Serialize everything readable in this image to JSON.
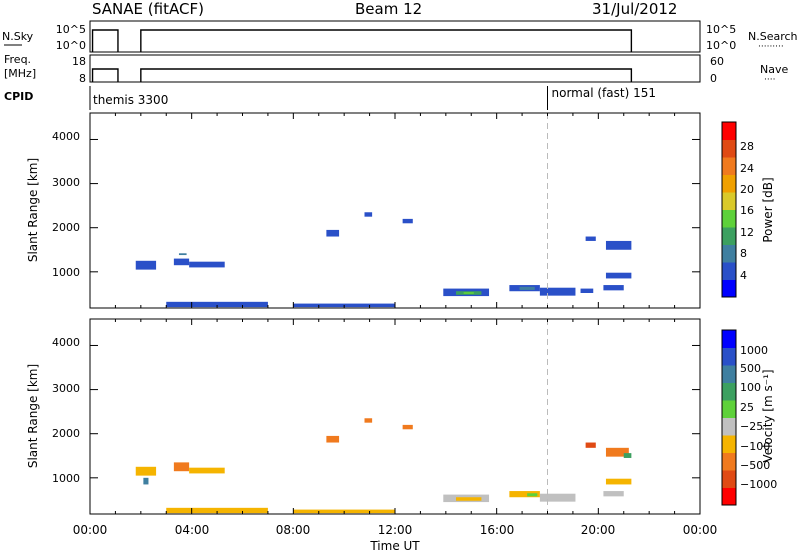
{
  "header": {
    "station": "SANAE (fitACF)",
    "beam": "Beam 12",
    "date": "31/Jul/2012"
  },
  "strip1": {
    "left_label": "N.Sky",
    "left_ticks": [
      "10^5",
      "10^0"
    ],
    "right_ticks": [
      "10^5",
      "10^0"
    ],
    "right_label": "N.Search",
    "right_key": "·········",
    "segments": [
      [
        0.1,
        1.1
      ],
      [
        2.0,
        21.3
      ]
    ]
  },
  "strip2": {
    "left_label_1": "Freq.",
    "left_label_2": "[MHz]",
    "left_ticks": [
      "18",
      "8"
    ],
    "right_ticks": [
      "60",
      "0"
    ],
    "right_label": "Nave",
    "right_key": "····",
    "segments": [
      [
        0.1,
        1.1
      ],
      [
        2.0,
        21.3
      ]
    ]
  },
  "cpid": {
    "label": "CPID",
    "programs": [
      {
        "start_hour": 0.0,
        "label": "themis 3300"
      },
      {
        "start_hour": 18.0,
        "label": "normal (fast) 151"
      }
    ]
  },
  "chart_data": [
    {
      "type": "heatmap",
      "ylabel": "Slant Range [km]",
      "y_ticks": [
        "4000",
        "3000",
        "2000",
        "1000"
      ],
      "y_range": [
        180,
        4600
      ],
      "x_range": [
        0,
        24
      ],
      "divider_hour": 18,
      "colorbar": {
        "label": "Power [dB]",
        "labels": [
          "28",
          "24",
          "20",
          "16",
          "12",
          "8",
          "4"
        ],
        "colors": [
          "#0000ff",
          "#2a50c8",
          "#3f7fa0",
          "#3ca060",
          "#5ed13a",
          "#d9c92a",
          "#f0a000",
          "#f07a1e",
          "#e04a14",
          "#ff0000"
        ]
      },
      "patches": [
        {
          "x0": 1.8,
          "x1": 2.6,
          "y0": 1050,
          "y1": 1250,
          "color": "#2a50c8"
        },
        {
          "x0": 3.3,
          "x1": 3.9,
          "y0": 1150,
          "y1": 1300,
          "color": "#2a50c8"
        },
        {
          "x0": 3.9,
          "x1": 5.3,
          "y0": 1100,
          "y1": 1230,
          "color": "#2a50c8"
        },
        {
          "x0": 3.5,
          "x1": 3.8,
          "y0": 1380,
          "y1": 1420,
          "color": "#3f7fa0"
        },
        {
          "x0": 9.3,
          "x1": 9.8,
          "y0": 1800,
          "y1": 1950,
          "color": "#2a50c8"
        },
        {
          "x0": 10.8,
          "x1": 11.1,
          "y0": 2250,
          "y1": 2350,
          "color": "#2a50c8"
        },
        {
          "x0": 12.3,
          "x1": 12.7,
          "y0": 2100,
          "y1": 2200,
          "color": "#2a50c8"
        },
        {
          "x0": 13.9,
          "x1": 15.7,
          "y0": 450,
          "y1": 620,
          "color": "#2a50c8"
        },
        {
          "x0": 14.4,
          "x1": 15.4,
          "y0": 480,
          "y1": 560,
          "color": "#3ca060"
        },
        {
          "x0": 14.7,
          "x1": 15.1,
          "y0": 500,
          "y1": 540,
          "color": "#5ed13a"
        },
        {
          "x0": 16.5,
          "x1": 17.7,
          "y0": 560,
          "y1": 700,
          "color": "#2a50c8"
        },
        {
          "x0": 16.9,
          "x1": 17.5,
          "y0": 590,
          "y1": 660,
          "color": "#3f7fa0"
        },
        {
          "x0": 17.7,
          "x1": 19.1,
          "y0": 460,
          "y1": 640,
          "color": "#2a50c8"
        },
        {
          "x0": 19.3,
          "x1": 19.8,
          "y0": 520,
          "y1": 620,
          "color": "#2a50c8"
        },
        {
          "x0": 19.5,
          "x1": 19.9,
          "y0": 1700,
          "y1": 1800,
          "color": "#2a50c8"
        },
        {
          "x0": 20.3,
          "x1": 21.3,
          "y0": 1500,
          "y1": 1700,
          "color": "#2a50c8"
        },
        {
          "x0": 20.3,
          "x1": 21.3,
          "y0": 850,
          "y1": 980,
          "color": "#2a50c8"
        },
        {
          "x0": 20.2,
          "x1": 21.0,
          "y0": 580,
          "y1": 700,
          "color": "#2a50c8"
        },
        {
          "x0": 3.0,
          "x1": 7.0,
          "y0": 200,
          "y1": 320,
          "color": "#2a50c8"
        },
        {
          "x0": 8.0,
          "x1": 12.0,
          "y0": 200,
          "y1": 280,
          "color": "#2a50c8"
        }
      ]
    },
    {
      "type": "heatmap",
      "ylabel": "Slant Range [km]",
      "y_ticks": [
        "4000",
        "3000",
        "2000",
        "1000"
      ],
      "y_range": [
        180,
        4600
      ],
      "x_range": [
        0,
        24
      ],
      "divider_hour": 18,
      "colorbar": {
        "label": "Velocity  [m s⁻¹]",
        "labels": [
          "1000",
          "500",
          "100",
          "25",
          "−25",
          "−100",
          "−500",
          "−1000"
        ],
        "colors": [
          "#ff0000",
          "#e04a14",
          "#f07a1e",
          "#f5b400",
          "#c0c0c0",
          "#5ed13a",
          "#3ca060",
          "#3f7fa0",
          "#2a50c8",
          "#0000ff"
        ]
      },
      "patches": [
        {
          "x0": 1.8,
          "x1": 2.6,
          "y0": 1050,
          "y1": 1250,
          "color": "#f5b400"
        },
        {
          "x0": 2.1,
          "x1": 2.3,
          "y0": 850,
          "y1": 1000,
          "color": "#3f7fa0"
        },
        {
          "x0": 3.3,
          "x1": 3.9,
          "y0": 1150,
          "y1": 1350,
          "color": "#f07a1e"
        },
        {
          "x0": 3.9,
          "x1": 5.3,
          "y0": 1100,
          "y1": 1230,
          "color": "#f5b400"
        },
        {
          "x0": 9.3,
          "x1": 9.8,
          "y0": 1800,
          "y1": 1950,
          "color": "#f07a1e"
        },
        {
          "x0": 10.8,
          "x1": 11.1,
          "y0": 2250,
          "y1": 2350,
          "color": "#f07a1e"
        },
        {
          "x0": 12.3,
          "x1": 12.7,
          "y0": 2100,
          "y1": 2200,
          "color": "#f07a1e"
        },
        {
          "x0": 13.9,
          "x1": 15.7,
          "y0": 450,
          "y1": 620,
          "color": "#c0c0c0"
        },
        {
          "x0": 14.4,
          "x1": 15.4,
          "y0": 480,
          "y1": 560,
          "color": "#f5b400"
        },
        {
          "x0": 16.5,
          "x1": 17.7,
          "y0": 560,
          "y1": 700,
          "color": "#f5b400"
        },
        {
          "x0": 17.2,
          "x1": 17.6,
          "y0": 580,
          "y1": 650,
          "color": "#5ed13a"
        },
        {
          "x0": 17.7,
          "x1": 19.1,
          "y0": 460,
          "y1": 640,
          "color": "#c0c0c0"
        },
        {
          "x0": 19.5,
          "x1": 19.9,
          "y0": 1680,
          "y1": 1800,
          "color": "#e04a14"
        },
        {
          "x0": 20.3,
          "x1": 21.2,
          "y0": 1480,
          "y1": 1680,
          "color": "#f07a1e"
        },
        {
          "x0": 21.0,
          "x1": 21.3,
          "y0": 1450,
          "y1": 1560,
          "color": "#3ca060"
        },
        {
          "x0": 20.3,
          "x1": 21.3,
          "y0": 850,
          "y1": 980,
          "color": "#f5b400"
        },
        {
          "x0": 20.2,
          "x1": 21.0,
          "y0": 580,
          "y1": 700,
          "color": "#c0c0c0"
        },
        {
          "x0": 3.0,
          "x1": 7.0,
          "y0": 200,
          "y1": 320,
          "color": "#f5b400"
        },
        {
          "x0": 8.0,
          "x1": 12.0,
          "y0": 200,
          "y1": 280,
          "color": "#f5b400"
        }
      ]
    }
  ],
  "xaxis": {
    "tick_labels": [
      "00:00",
      "04:00",
      "08:00",
      "12:00",
      "16:00",
      "20:00",
      "00:00"
    ],
    "label": "Time UT"
  }
}
